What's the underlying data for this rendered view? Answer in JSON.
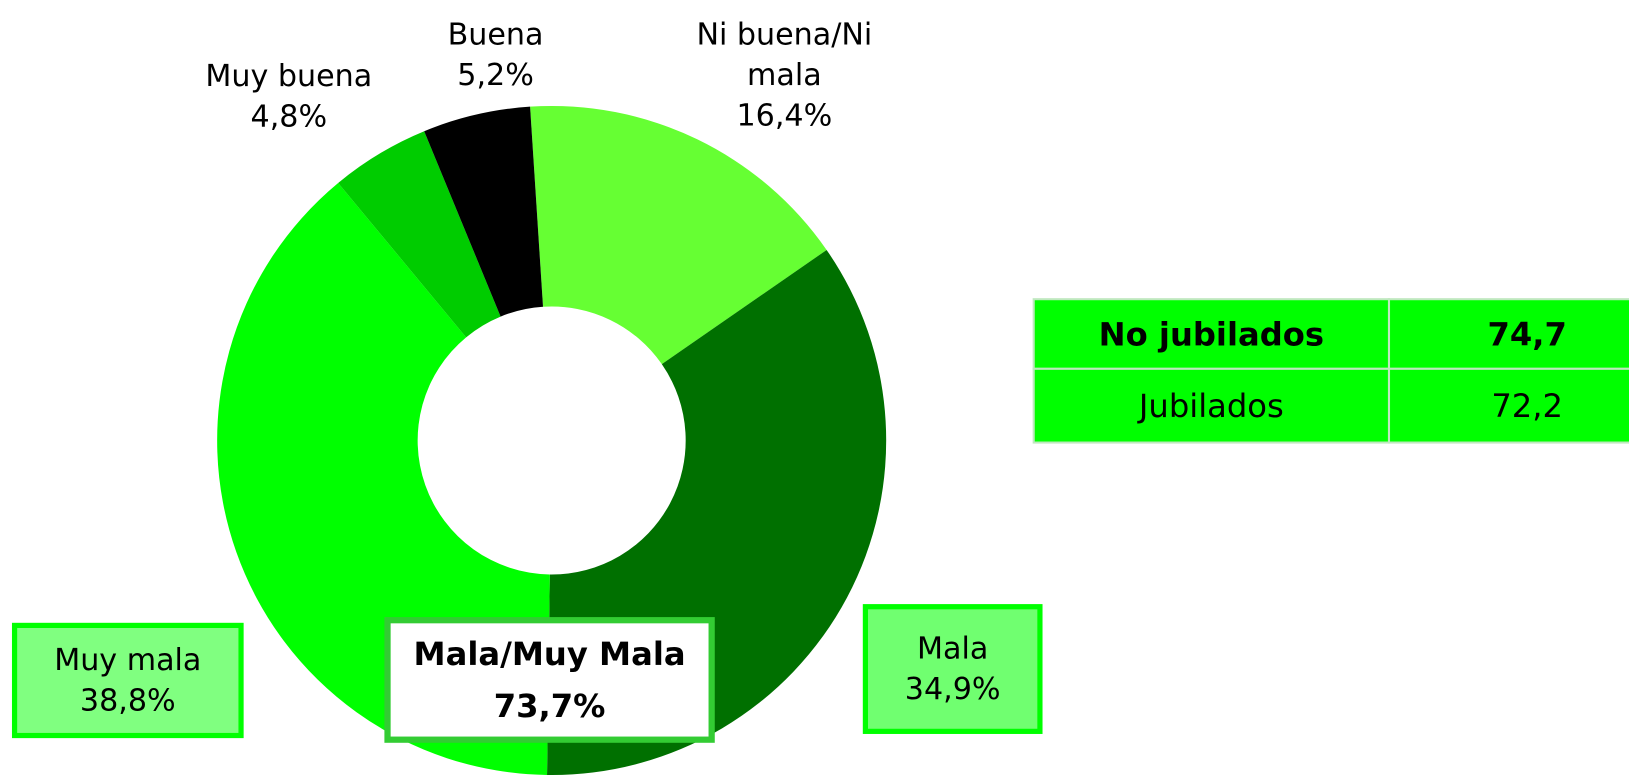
{
  "chart_data": {
    "type": "donut",
    "categories": [
      "Ni buena/Ni mala",
      "Mala",
      "Muy mala",
      "Muy buena",
      "Buena"
    ],
    "values": [
      16.4,
      34.9,
      38.8,
      4.8,
      5.2
    ],
    "value_labels": [
      "16,4%",
      "34,9%",
      "38,8%",
      "4,8%",
      "5,2%"
    ],
    "colors": [
      "#66ff33",
      "#007000",
      "#00ff00",
      "#00cc00",
      "#000000"
    ],
    "annotation": {
      "text": "Mala/Muy Mala",
      "value_label": "73,7%"
    }
  },
  "table": {
    "rows": [
      [
        "No jubilados",
        "74,7"
      ],
      [
        "Jubilados",
        "72,2"
      ]
    ]
  }
}
